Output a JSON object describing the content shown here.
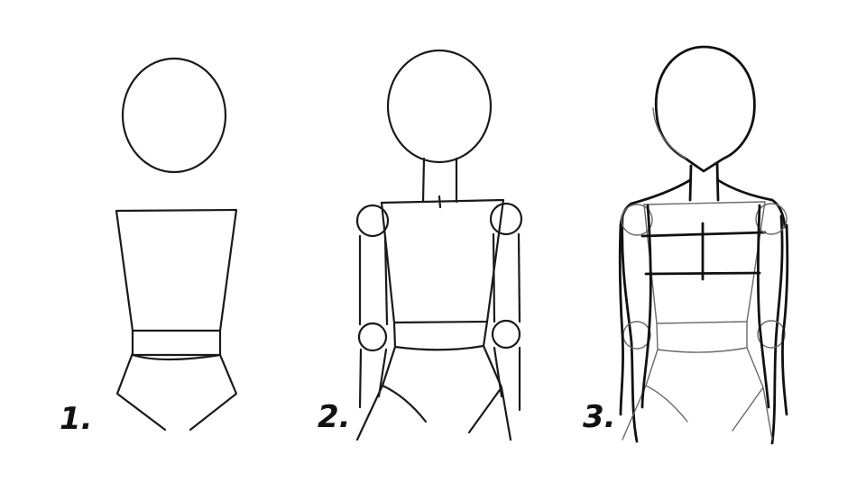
{
  "steps": [
    {
      "label": "1."
    },
    {
      "label": "2."
    },
    {
      "label": "3."
    }
  ],
  "colors": {
    "ink": "#1a1a1a",
    "background": "#ffffff"
  }
}
